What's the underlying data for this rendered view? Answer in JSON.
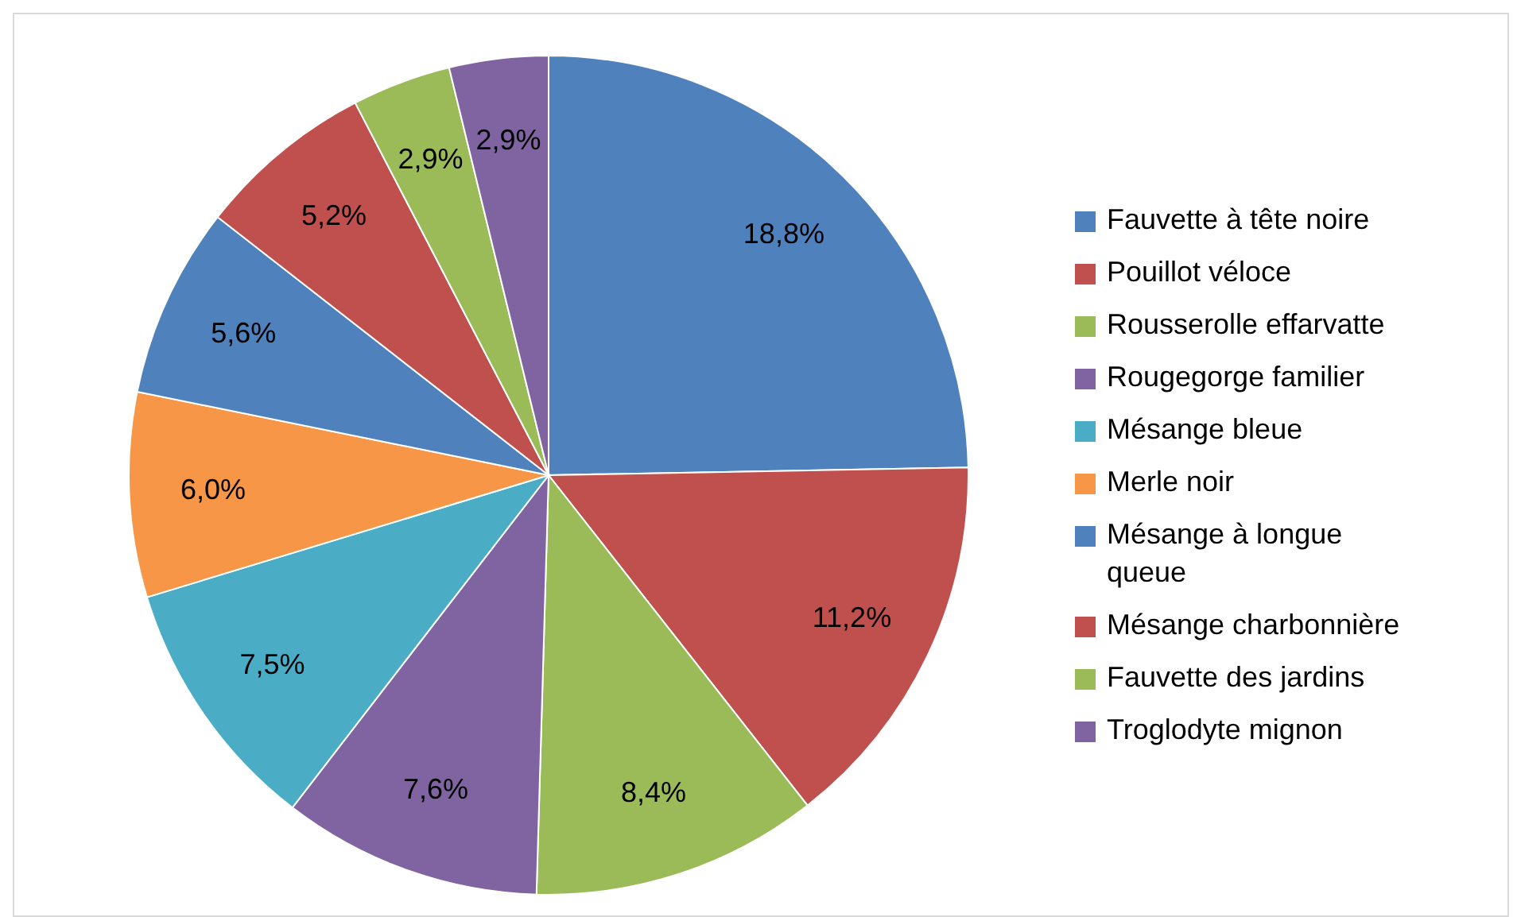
{
  "chart_data": {
    "type": "pie",
    "categories": [
      "Fauvette à tête noire",
      "Pouillot véloce",
      "Rousserolle effarvatte",
      "Rougegorge familier",
      "Mésange bleue",
      "Merle noir",
      "Mésange à longue queue",
      "Mésange charbonnière",
      "Fauvette des jardins",
      "Troglodyte mignon"
    ],
    "values": [
      18.8,
      11.2,
      8.4,
      7.6,
      7.5,
      6.0,
      5.6,
      5.2,
      2.9,
      2.9
    ],
    "value_labels": [
      "18,8%",
      "11,2%",
      "8,4%",
      "7,6%",
      "7,5%",
      "6,0%",
      "5,6%",
      "5,2%",
      "2,9%",
      "2,9%"
    ],
    "colors": [
      "#4f81bd",
      "#c0504d",
      "#9bbb59",
      "#8064a2",
      "#4bacc6",
      "#f79646",
      "#4f81bd",
      "#c0504d",
      "#9bbb59",
      "#8064a2"
    ],
    "legend": "right"
  }
}
